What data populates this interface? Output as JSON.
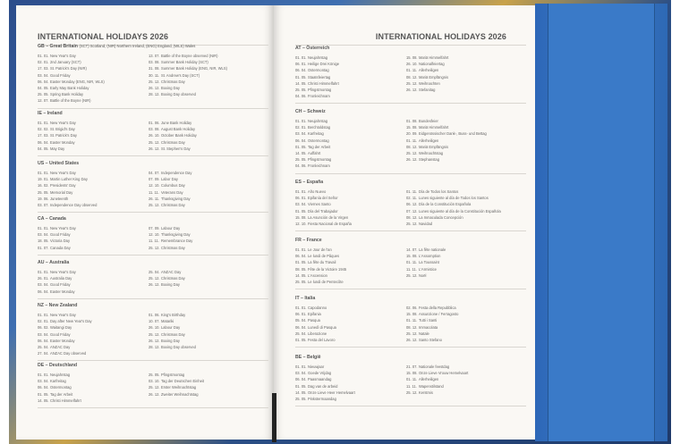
{
  "page_title": "INTERNATIONAL HOLIDAYS  2026",
  "colors": {
    "cover": "#3a78c6",
    "page": "#faf8f4",
    "text": "#666666"
  },
  "left_page": [
    {
      "title": "GB – Great Britain",
      "subtitle": "(SCT) Scotland, (NIR) Northern Ireland, (ENG) England, (WLS) Wales",
      "col1": [
        [
          "01. 01.",
          "New Year's Day"
        ],
        [
          "02. 01.",
          "2nd January (SCT)"
        ],
        [
          "17. 03.",
          "St. Patrick's Day (NIR)"
        ],
        [
          "03. 04.",
          "Good Friday"
        ],
        [
          "06. 04.",
          "Easter Monday (ENG, NIR, WLS)"
        ],
        [
          "04. 05.",
          "Early May Bank Holiday"
        ],
        [
          "25. 05.",
          "Spring Bank Holiday"
        ],
        [
          "12. 07.",
          "Battle of the Boyne (NIR)"
        ]
      ],
      "col2": [
        [
          "13. 07.",
          "Battle of the Boyne observed (NIR)"
        ],
        [
          "03. 08.",
          "Summer Bank Holiday (SCT)"
        ],
        [
          "31. 08.",
          "Summer Bank Holiday (ENG, NIR, WLS)"
        ],
        [
          "30. 11.",
          "St. Andrew's Day (SCT)"
        ],
        [
          "25. 12.",
          "Christmas Day"
        ],
        [
          "26. 12.",
          "Boxing Day"
        ],
        [
          "28. 12.",
          "Boxing Day observed"
        ]
      ]
    },
    {
      "title": "IE – Ireland",
      "col1": [
        [
          "01. 01.",
          "New Year's Day"
        ],
        [
          "02. 02.",
          "St. Brigid's Day"
        ],
        [
          "17. 03.",
          "St. Patrick's Day"
        ],
        [
          "06. 04.",
          "Easter Monday"
        ],
        [
          "04. 05.",
          "May Day"
        ]
      ],
      "col2": [
        [
          "01. 06.",
          "June Bank Holiday"
        ],
        [
          "03. 08.",
          "August Bank Holiday"
        ],
        [
          "26. 10.",
          "October Bank Holiday"
        ],
        [
          "25. 12.",
          "Christmas Day"
        ],
        [
          "26. 12.",
          "St. Stephen's Day"
        ]
      ]
    },
    {
      "title": "US – United States",
      "col1": [
        [
          "01. 01.",
          "New Year's Day"
        ],
        [
          "19. 01.",
          "Martin Luther King Day"
        ],
        [
          "16. 02.",
          "Presidents' Day"
        ],
        [
          "25. 05.",
          "Memorial Day"
        ],
        [
          "19. 06.",
          "Juneteenth"
        ],
        [
          "03. 07.",
          "Independence Day observed"
        ]
      ],
      "col2": [
        [
          "04. 07.",
          "Independence Day"
        ],
        [
          "07. 09.",
          "Labor Day"
        ],
        [
          "12. 10.",
          "Columbus Day"
        ],
        [
          "11. 11.",
          "Veterans Day"
        ],
        [
          "26. 11.",
          "Thanksgiving Day"
        ],
        [
          "25. 12.",
          "Christmas Day"
        ]
      ]
    },
    {
      "title": "CA – Canada",
      "col1": [
        [
          "01. 01.",
          "New Year's Day"
        ],
        [
          "03. 04.",
          "Good Friday"
        ],
        [
          "18. 05.",
          "Victoria Day"
        ],
        [
          "01. 07.",
          "Canada Day"
        ]
      ],
      "col2": [
        [
          "07. 09.",
          "Labour Day"
        ],
        [
          "12. 10.",
          "Thanksgiving Day"
        ],
        [
          "11. 11.",
          "Remembrance Day"
        ],
        [
          "25. 12.",
          "Christmas Day"
        ]
      ]
    },
    {
      "title": "AU – Australia",
      "col1": [
        [
          "01. 01.",
          "New Year's Day"
        ],
        [
          "26. 01.",
          "Australia Day"
        ],
        [
          "03. 04.",
          "Good Friday"
        ],
        [
          "06. 04.",
          "Easter Monday"
        ]
      ],
      "col2": [
        [
          "25. 04.",
          "ANZAC Day"
        ],
        [
          "25. 12.",
          "Christmas Day"
        ],
        [
          "26. 12.",
          "Boxing Day"
        ]
      ]
    },
    {
      "title": "NZ – New Zealand",
      "col1": [
        [
          "01. 01.",
          "New Year's Day"
        ],
        [
          "02. 01.",
          "Day after New Year's Day"
        ],
        [
          "06. 02.",
          "Waitangi Day"
        ],
        [
          "03. 04.",
          "Good Friday"
        ],
        [
          "06. 04.",
          "Easter Monday"
        ],
        [
          "25. 04.",
          "ANZAC Day"
        ],
        [
          "27. 04.",
          "ANZAC Day observed"
        ]
      ],
      "col2": [
        [
          "01. 06.",
          "King's Birthday"
        ],
        [
          "10. 07.",
          "Matariki"
        ],
        [
          "26. 10.",
          "Labour Day"
        ],
        [
          "25. 12.",
          "Christmas Day"
        ],
        [
          "26. 12.",
          "Boxing Day"
        ],
        [
          "28. 12.",
          "Boxing Day observed"
        ]
      ]
    },
    {
      "title": "DE – Deutschland",
      "col1": [
        [
          "01. 01.",
          "Neujahrstag"
        ],
        [
          "03. 04.",
          "Karfreitag"
        ],
        [
          "06. 04.",
          "Ostermontag"
        ],
        [
          "01. 05.",
          "Tag der Arbeit"
        ],
        [
          "14. 05.",
          "Christi Himmelfahrt"
        ]
      ],
      "col2": [
        [
          "25. 05.",
          "Pfingstmontag"
        ],
        [
          "03. 10.",
          "Tag der Deutschen Einheit"
        ],
        [
          "25. 12.",
          "Erster Weihnachtstag"
        ],
        [
          "26. 12.",
          "Zweiter Weihnachtstag"
        ]
      ]
    }
  ],
  "right_page": [
    {
      "title": "AT – Österreich",
      "col1": [
        [
          "01. 01.",
          "Neujahrstag"
        ],
        [
          "06. 01.",
          "Heilige Drei Könige"
        ],
        [
          "06. 04.",
          "Ostermontag"
        ],
        [
          "01. 05.",
          "Staatsfeiertag"
        ],
        [
          "14. 05.",
          "Christi Himmelfahrt"
        ],
        [
          "25. 05.",
          "Pfingstmontag"
        ],
        [
          "04. 06.",
          "Fronleichnam"
        ]
      ],
      "col2": [
        [
          "15. 08.",
          "Mariä Himmelfahrt"
        ],
        [
          "26. 10.",
          "Nationalfeiertag"
        ],
        [
          "01. 11.",
          "Allerheiligen"
        ],
        [
          "08. 12.",
          "Mariä Empfängnis"
        ],
        [
          "25. 12.",
          "Weihnachten"
        ],
        [
          "26. 12.",
          "Stefanitag"
        ]
      ]
    },
    {
      "title": "CH – Schweiz",
      "col1": [
        [
          "01. 01.",
          "Neujahrstag"
        ],
        [
          "02. 01.",
          "Berchtoldstag"
        ],
        [
          "03. 04.",
          "Karfreitag"
        ],
        [
          "06. 04.",
          "Ostermontag"
        ],
        [
          "01. 05.",
          "Tag der Arbeit"
        ],
        [
          "14. 05.",
          "Auffahrt"
        ],
        [
          "25. 05.",
          "Pfingstmontag"
        ],
        [
          "04. 06.",
          "Fronleichnam"
        ]
      ],
      "col2": [
        [
          "01. 08.",
          "Bundesfeier"
        ],
        [
          "15. 08.",
          "Mariä Himmelfahrt"
        ],
        [
          "20. 09.",
          "Eidgenössischer Dank-, Buss- und Bettag"
        ],
        [
          "01. 11.",
          "Allerheiligen"
        ],
        [
          "08. 12.",
          "Mariä Empfängnis"
        ],
        [
          "25. 12.",
          "Weihnachtstag"
        ],
        [
          "26. 12.",
          "Stephanstag"
        ]
      ]
    },
    {
      "title": "ES – España",
      "col1": [
        [
          "01. 01.",
          "Año Nuevo"
        ],
        [
          "06. 01.",
          "Epifanía del Señor"
        ],
        [
          "03. 04.",
          "Viernes Santo"
        ],
        [
          "01. 05.",
          "Día del Trabajador"
        ],
        [
          "15. 08.",
          "La Asunción de la Virgen"
        ],
        [
          "12. 10.",
          "Fiesta Nacional de España"
        ]
      ],
      "col2": [
        [
          "01. 11.",
          "Día de Todos los Santos"
        ],
        [
          "02. 11.",
          "Lunes siguiente al día de Todos los Santos"
        ],
        [
          "06. 12.",
          "Día de la Constitución Española"
        ],
        [
          "07. 12.",
          "Lunes siguiente al día de la Constitución Española"
        ],
        [
          "08. 12.",
          "La Inmaculada Concepción"
        ],
        [
          "25. 12.",
          "Navidad"
        ]
      ]
    },
    {
      "title": "FR – France",
      "col1": [
        [
          "01. 01.",
          "Le Jour de l'an"
        ],
        [
          "06. 04.",
          "Le lundi de Pâques"
        ],
        [
          "01. 05.",
          "La fête du Travail"
        ],
        [
          "08. 05.",
          "Fête de la Victoire 1945"
        ],
        [
          "14. 05.",
          "L'Ascension"
        ],
        [
          "25. 05.",
          "Le lundi de Pentecôte"
        ]
      ],
      "col2": [
        [
          "14. 07.",
          "La fête nationale"
        ],
        [
          "15. 08.",
          "L'Assomption"
        ],
        [
          "01. 11.",
          "La Toussaint"
        ],
        [
          "11. 11.",
          "L'Armistice"
        ],
        [
          "25. 12.",
          "Noël"
        ]
      ]
    },
    {
      "title": "IT – Italia",
      "col1": [
        [
          "01. 01.",
          "Capodanno"
        ],
        [
          "06. 01.",
          "Epifania"
        ],
        [
          "05. 04.",
          "Pasqua"
        ],
        [
          "06. 04.",
          "Lunedì di Pasqua"
        ],
        [
          "25. 04.",
          "Liberazione"
        ],
        [
          "01. 05.",
          "Festa del Lavoro"
        ]
      ],
      "col2": [
        [
          "02. 06.",
          "Festa della Repubblica"
        ],
        [
          "15. 08.",
          "Assunzione / Ferragosto"
        ],
        [
          "01. 11.",
          "Tutti i Santi"
        ],
        [
          "08. 12.",
          "Immacolata"
        ],
        [
          "25. 12.",
          "Natale"
        ],
        [
          "26. 12.",
          "Santo Stefano"
        ]
      ]
    },
    {
      "title": "BE – België",
      "col1": [
        [
          "01. 01.",
          "Nieuwjaar"
        ],
        [
          "03. 04.",
          "Goede Vrijdag"
        ],
        [
          "06. 04.",
          "Paasmaandag"
        ],
        [
          "01. 05.",
          "Dag van de arbeid"
        ],
        [
          "14. 05.",
          "Onze Lieve Heer Hemelvaart"
        ],
        [
          "25. 05.",
          "Pinkstermaandag"
        ]
      ],
      "col2": [
        [
          "21. 07.",
          "Nationale feestdag"
        ],
        [
          "15. 08.",
          "Onze Lieve Vrouw Hemelvaart"
        ],
        [
          "01. 11.",
          "Allerheiligen"
        ],
        [
          "11. 11.",
          "Wapenstilstand"
        ],
        [
          "25. 12.",
          "Kerstmis"
        ]
      ]
    }
  ]
}
